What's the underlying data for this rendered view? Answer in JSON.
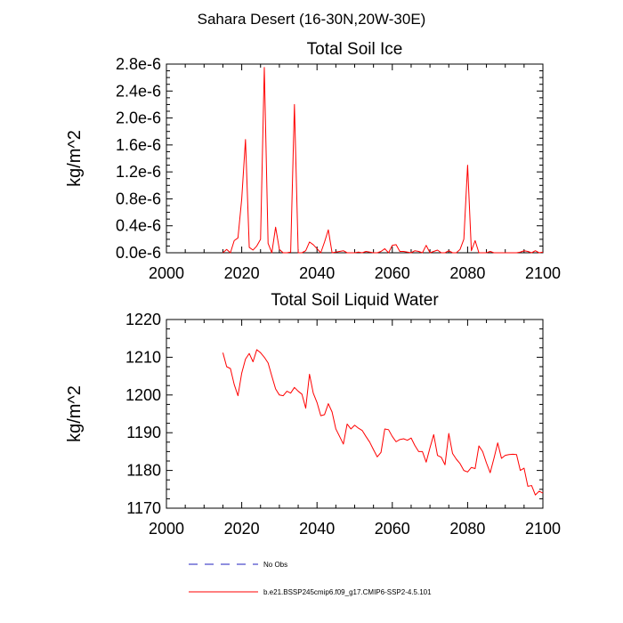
{
  "figure_title": "Sahara Desert (16-30N,20W-30E)",
  "legend": {
    "obs_label": "No Obs",
    "model_label": "b.e21.BSSP245cmip6.f09_g17.CMIP6-SSP2-4.5.101",
    "obs_color": "#1f1fbf",
    "model_color": "#ff0000"
  },
  "chart_data": [
    {
      "type": "line",
      "title": "Total Soil Ice",
      "ylabel": "kg/m^2",
      "xlabel": "",
      "xlim": [
        2000,
        2100
      ],
      "ylim": [
        0,
        2.8e-06
      ],
      "xticks": [
        2000,
        2020,
        2040,
        2060,
        2080,
        2100
      ],
      "xtick_labels": [
        "2000",
        "2020",
        "2040",
        "2060",
        "2080",
        "2100"
      ],
      "yticks": [
        0,
        4e-07,
        8e-07,
        1.2e-06,
        1.6e-06,
        2e-06,
        2.4e-06,
        2.8e-06
      ],
      "ytick_labels": [
        "0.0e-6",
        "0.4e-6",
        "0.8e-6",
        "1.2e-6",
        "1.6e-6",
        "2.0e-6",
        "2.4e-6",
        "2.8e-6"
      ],
      "series": [
        {
          "name": "b.e21.BSSP245cmip6.f09_g17.CMIP6-SSP2-4.5.101",
          "color": "#ff0000",
          "x": [
            2015,
            2016,
            2017,
            2018,
            2019,
            2020,
            2021,
            2022,
            2023,
            2024,
            2025,
            2026,
            2027,
            2028,
            2029,
            2030,
            2031,
            2032,
            2033,
            2034,
            2035,
            2036,
            2037,
            2038,
            2039,
            2040,
            2041,
            2042,
            2043,
            2044,
            2045,
            2046,
            2047,
            2048,
            2049,
            2050,
            2051,
            2052,
            2053,
            2054,
            2055,
            2056,
            2057,
            2058,
            2059,
            2060,
            2061,
            2062,
            2063,
            2064,
            2065,
            2066,
            2067,
            2068,
            2069,
            2070,
            2071,
            2072,
            2073,
            2074,
            2075,
            2076,
            2077,
            2078,
            2079,
            2080,
            2081,
            2082,
            2083,
            2084,
            2085,
            2086,
            2087,
            2088,
            2089,
            2090,
            2091,
            2092,
            2093,
            2094,
            2095,
            2096,
            2097,
            2098,
            2099,
            2100
          ],
          "values": [
            0,
            5e-08,
            0,
            1.8e-07,
            2.2e-07,
            8e-07,
            1.68e-06,
            8e-08,
            4e-08,
            1e-07,
            2e-07,
            2.75e-06,
            1.4e-07,
            0,
            3.8e-07,
            5e-08,
            0,
            0,
            1e-08,
            2.2e-06,
            0,
            0,
            3e-08,
            1.6e-07,
            1.2e-07,
            6e-08,
            0,
            1.6e-07,
            3.4e-07,
            0,
            1e-08,
            2e-08,
            3e-08,
            0,
            0,
            0,
            1e-08,
            0,
            2e-08,
            1e-08,
            0,
            0,
            2e-08,
            6e-08,
            0,
            1.1e-07,
            1.2e-07,
            2e-08,
            2e-08,
            1e-08,
            0,
            3e-08,
            2e-08,
            0,
            1.1e-07,
            0,
            2e-08,
            4e-08,
            0,
            0,
            3e-08,
            0,
            0,
            5e-08,
            2e-07,
            1.3e-06,
            3e-08,
            1.8e-07,
            0,
            0,
            0,
            2e-08,
            0,
            0,
            0,
            0,
            0,
            0,
            0,
            1e-08,
            3e-08,
            2e-08,
            0,
            3e-08,
            0,
            1e-08
          ]
        }
      ]
    },
    {
      "type": "line",
      "title": "Total Soil Liquid Water",
      "ylabel": "kg/m^2",
      "xlabel": "",
      "xlim": [
        2000,
        2100
      ],
      "ylim": [
        1170,
        1220
      ],
      "xticks": [
        2000,
        2020,
        2040,
        2060,
        2080,
        2100
      ],
      "xtick_labels": [
        "2000",
        "2020",
        "2040",
        "2060",
        "2080",
        "2100"
      ],
      "yticks": [
        1170,
        1180,
        1190,
        1200,
        1210,
        1220
      ],
      "ytick_labels": [
        "1170",
        "1180",
        "1190",
        "1200",
        "1210",
        "1220"
      ],
      "series": [
        {
          "name": "b.e21.BSSP245cmip6.f09_g17.CMIP6-SSP2-4.5.101",
          "color": "#ff0000",
          "x": [
            2015,
            2016,
            2017,
            2018,
            2019,
            2020,
            2021,
            2022,
            2023,
            2024,
            2025,
            2026,
            2027,
            2028,
            2029,
            2030,
            2031,
            2032,
            2033,
            2034,
            2035,
            2036,
            2037,
            2038,
            2039,
            2040,
            2041,
            2042,
            2043,
            2044,
            2045,
            2046,
            2047,
            2048,
            2049,
            2050,
            2051,
            2052,
            2053,
            2054,
            2055,
            2056,
            2057,
            2058,
            2059,
            2060,
            2061,
            2062,
            2063,
            2064,
            2065,
            2066,
            2067,
            2068,
            2069,
            2070,
            2071,
            2072,
            2073,
            2074,
            2075,
            2076,
            2077,
            2078,
            2079,
            2080,
            2081,
            2082,
            2083,
            2084,
            2085,
            2086,
            2087,
            2088,
            2089,
            2090,
            2091,
            2092,
            2093,
            2094,
            2095,
            2096,
            2097,
            2098,
            2099,
            2100
          ],
          "values": [
            1211.2,
            1207.5,
            1207,
            1202.8,
            1199.8,
            1205.8,
            1209.5,
            1211,
            1208.8,
            1212,
            1211.2,
            1210,
            1208.5,
            1205,
            1201.6,
            1200,
            1199.8,
            1201,
            1200.5,
            1202,
            1201,
            1200.2,
            1196.5,
            1205.5,
            1200.5,
            1198,
            1194.5,
            1194.8,
            1197.7,
            1195.5,
            1191,
            1189,
            1187,
            1192.3,
            1191,
            1192,
            1191.2,
            1190.6,
            1189,
            1187.5,
            1185.5,
            1183.6,
            1184.8,
            1191,
            1190.8,
            1189,
            1187.6,
            1188.2,
            1188.4,
            1188,
            1188.6,
            1186.6,
            1185,
            1185,
            1182.2,
            1186,
            1189.5,
            1184,
            1183.5,
            1181.5,
            1189.8,
            1184.5,
            1183,
            1181.8,
            1180,
            1179.6,
            1180.8,
            1180.5,
            1186.5,
            1185,
            1182,
            1179.4,
            1183.2,
            1187.3,
            1183.2,
            1184,
            1184.2,
            1184.3,
            1184.2,
            1180,
            1180.6,
            1175.8,
            1176,
            1173.5,
            1174.5,
            1174
          ]
        }
      ]
    }
  ]
}
